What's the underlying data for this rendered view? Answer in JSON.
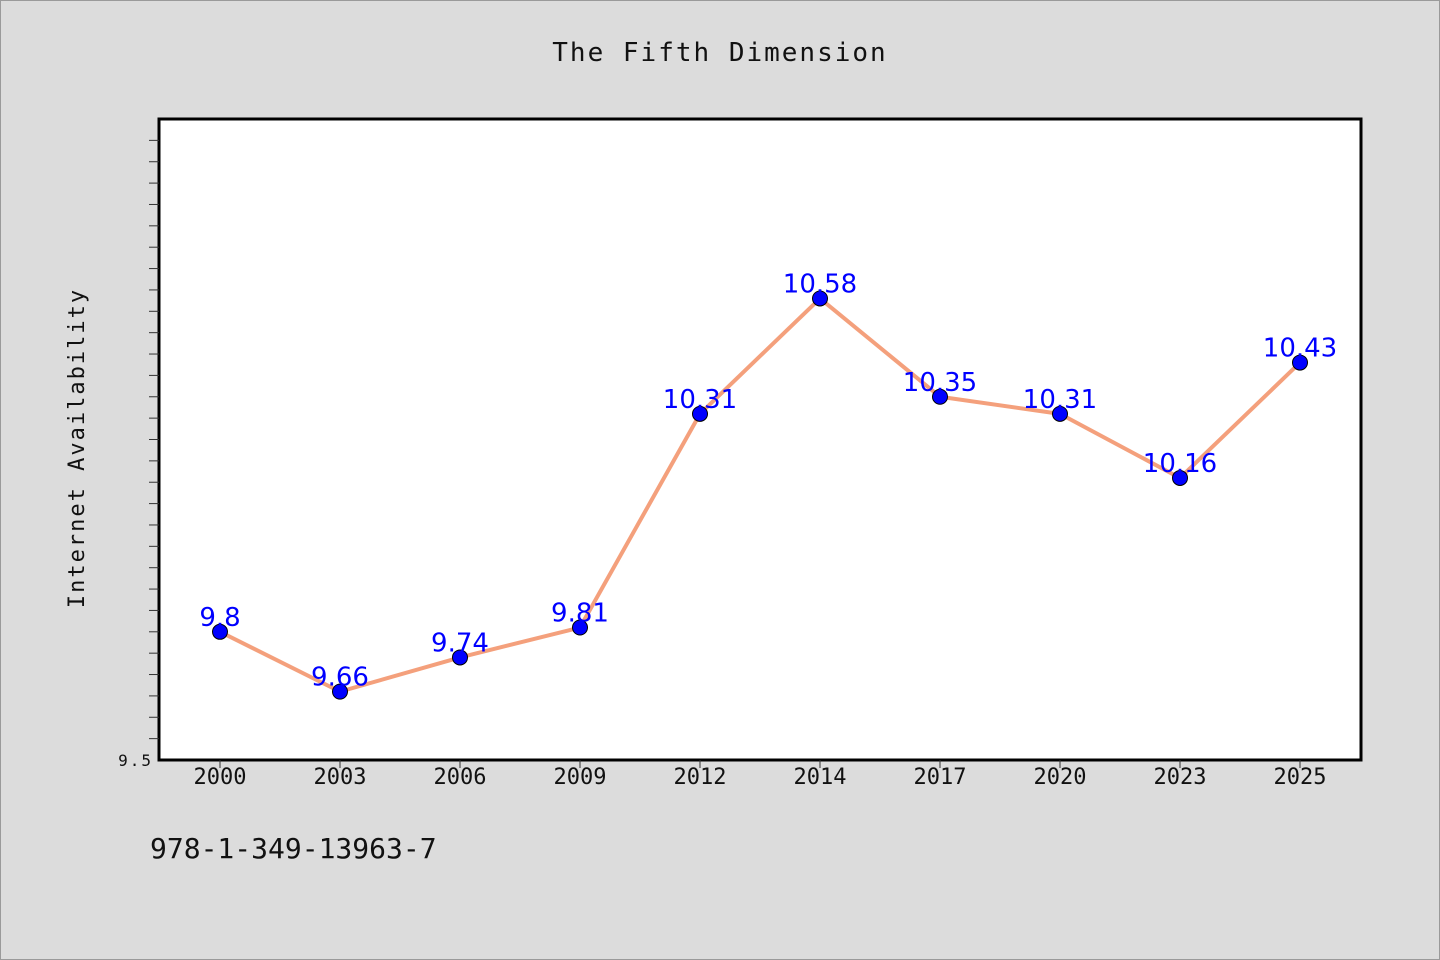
{
  "chart_data": {
    "type": "line",
    "title": "The Fifth Dimension",
    "ylabel": "Internet Availability",
    "xlabel": "",
    "categories": [
      "2000",
      "2003",
      "2006",
      "2009",
      "2012",
      "2014",
      "2017",
      "2020",
      "2023",
      "2025"
    ],
    "series": [
      {
        "values": [
          9.8,
          9.66,
          9.74,
          9.81,
          10.31,
          10.58,
          10.35,
          10.31,
          10.16,
          10.43
        ]
      }
    ],
    "y_tick_labels": [
      "9.5"
    ],
    "ylim": [
      9.5,
      11.0
    ],
    "grid": false,
    "legend": "none",
    "colors": {
      "line": "#f4a07c",
      "marker": "#0000ff",
      "data_label": "#0000ff"
    }
  },
  "footer": {
    "isbn": "978-1-349-13963-7"
  }
}
